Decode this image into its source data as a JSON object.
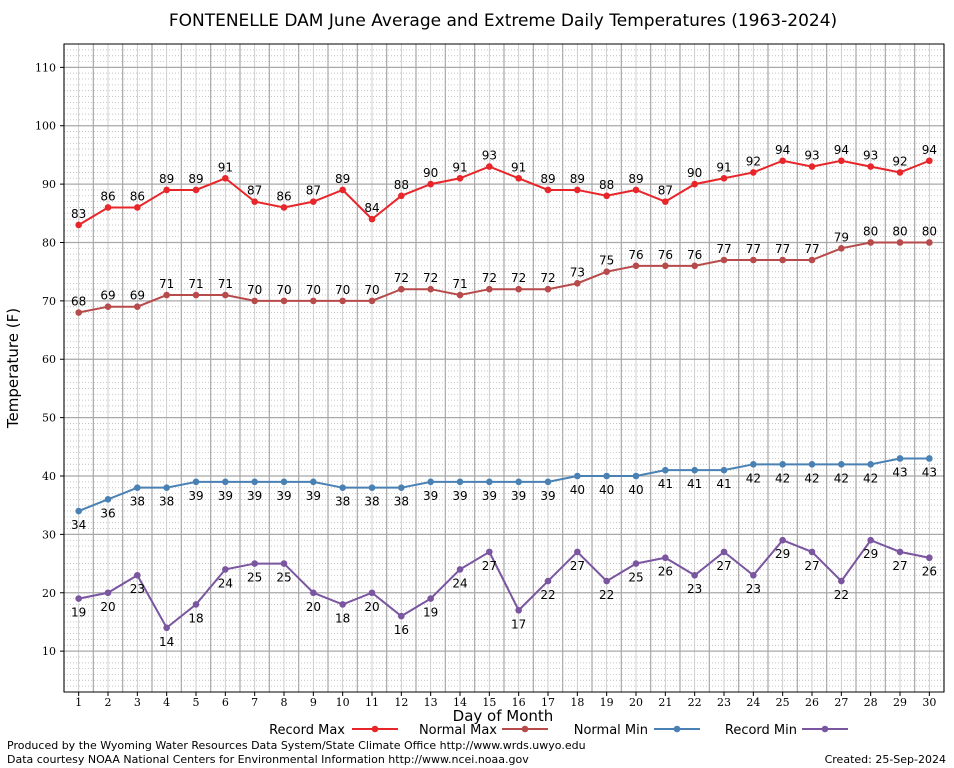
{
  "chart_data": {
    "type": "line",
    "title": "FONTENELLE DAM June Average and Extreme Daily Temperatures (1963-2024)",
    "xlabel": "Day of Month",
    "ylabel": "Temperature (F)",
    "x": [
      1,
      2,
      3,
      4,
      5,
      6,
      7,
      8,
      9,
      10,
      11,
      12,
      13,
      14,
      15,
      16,
      17,
      18,
      19,
      20,
      21,
      22,
      23,
      24,
      25,
      26,
      27,
      28,
      29,
      30
    ],
    "xlim": [
      0.5,
      30.5
    ],
    "ylim": [
      3,
      114
    ],
    "yticks": [
      10,
      20,
      30,
      40,
      50,
      60,
      70,
      80,
      90,
      100,
      110
    ],
    "grid": true,
    "legend_position": "bottom",
    "series": [
      {
        "name": "Record Max",
        "color": "#e8262a",
        "values": [
          83,
          86,
          86,
          89,
          89,
          91,
          87,
          86,
          87,
          89,
          84,
          88,
          90,
          91,
          93,
          91,
          89,
          89,
          88,
          89,
          87,
          90,
          91,
          92,
          94,
          93,
          94,
          93,
          92,
          94
        ]
      },
      {
        "name": "Normal Max",
        "color": "#b74a4a",
        "values": [
          68,
          69,
          69,
          71,
          71,
          71,
          70,
          70,
          70,
          70,
          70,
          72,
          72,
          71,
          72,
          72,
          72,
          73,
          75,
          76,
          76,
          76,
          77,
          77,
          77,
          77,
          79,
          80,
          80,
          80
        ]
      },
      {
        "name": "Normal Min",
        "color": "#4a81b4",
        "values": [
          34,
          36,
          38,
          38,
          39,
          39,
          39,
          39,
          39,
          38,
          38,
          38,
          39,
          39,
          39,
          39,
          39,
          40,
          40,
          40,
          41,
          41,
          41,
          42,
          42,
          42,
          42,
          42,
          43,
          43
        ]
      },
      {
        "name": "Record Min",
        "color": "#7a55a0",
        "values": [
          19,
          20,
          23,
          14,
          18,
          24,
          25,
          25,
          20,
          18,
          20,
          16,
          19,
          24,
          27,
          17,
          22,
          27,
          22,
          25,
          26,
          23,
          27,
          23,
          29,
          27,
          22,
          29,
          27,
          26
        ]
      }
    ]
  },
  "footer": {
    "produced_by": "Produced by the Wyoming Water Resources Data System/State Climate Office http://www.wrds.uwyo.edu",
    "courtesy": "Data courtesy NOAA National Centers for Environmental Information http://www.ncei.noaa.gov",
    "created": "Created: 25-Sep-2024"
  }
}
